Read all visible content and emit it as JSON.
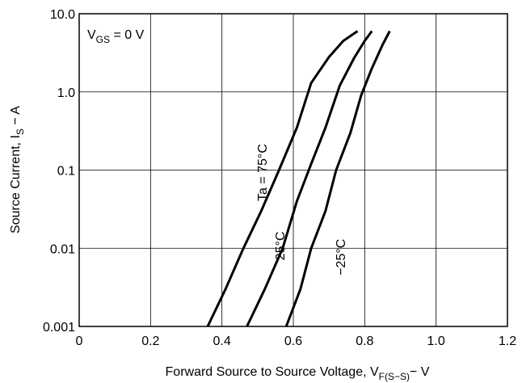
{
  "chart_data": {
    "type": "line",
    "x_scale": "linear",
    "y_scale": "log",
    "xlim": [
      0,
      1.2
    ],
    "ylim": [
      0.001,
      10
    ],
    "grid": true,
    "xlabel": {
      "main": "Forward Source to Source Voltage, V",
      "sub": "F(S−S)",
      "unit": "− V"
    },
    "ylabel": {
      "main": "Source Current, I",
      "sub": "S",
      "unit": " − A"
    },
    "x_ticks": [
      "0",
      "0.2",
      "0.4",
      "0.6",
      "0.8",
      "1.0",
      "1.2"
    ],
    "x_tick_values": [
      0,
      0.2,
      0.4,
      0.6,
      0.8,
      1.0,
      1.2
    ],
    "y_ticks": [
      "0.001",
      "0.01",
      "0.1",
      "1.0",
      "10.0"
    ],
    "y_tick_values": [
      0.001,
      0.01,
      0.1,
      1.0,
      10.0
    ],
    "annotation": {
      "main": "V",
      "sub": "GS",
      "rest": " = 0 V"
    },
    "series": [
      {
        "name": "Ta = 75°C",
        "x": [
          0.36,
          0.41,
          0.46,
          0.51,
          0.56,
          0.61,
          0.65,
          0.7,
          0.74,
          0.78
        ],
        "y": [
          0.001,
          0.003,
          0.01,
          0.03,
          0.1,
          0.35,
          1.3,
          2.8,
          4.5,
          6.0
        ]
      },
      {
        "name": "25°C",
        "x": [
          0.47,
          0.52,
          0.57,
          0.61,
          0.65,
          0.69,
          0.73,
          0.77,
          0.8,
          0.82
        ],
        "y": [
          0.001,
          0.003,
          0.01,
          0.04,
          0.12,
          0.35,
          1.2,
          2.7,
          4.5,
          6.0
        ]
      },
      {
        "name": "−25°C",
        "x": [
          0.58,
          0.62,
          0.65,
          0.69,
          0.72,
          0.76,
          0.79,
          0.82,
          0.85,
          0.87
        ],
        "y": [
          0.001,
          0.003,
          0.01,
          0.03,
          0.1,
          0.3,
          0.9,
          2.0,
          4.0,
          6.0
        ]
      }
    ]
  }
}
